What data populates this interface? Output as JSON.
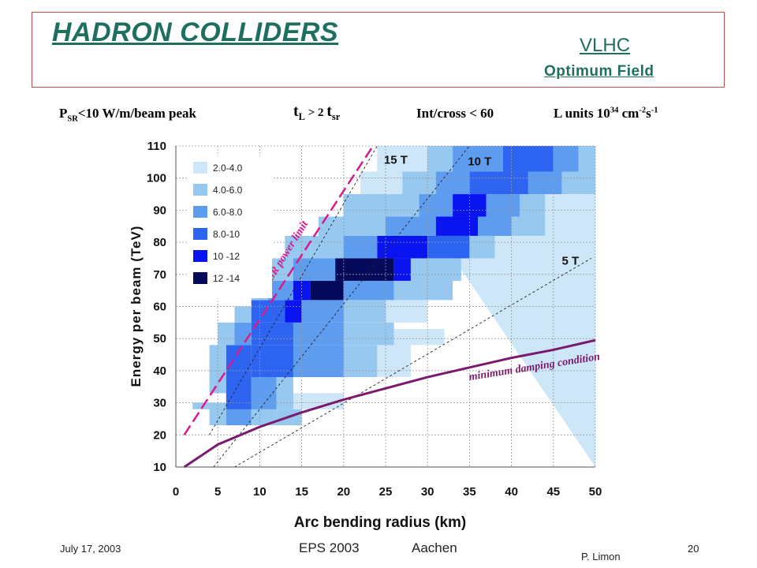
{
  "header": {
    "title": "HADRON COLLIDERS",
    "subtitle_1": "VLHC",
    "subtitle_2": "Optimum Field"
  },
  "conditions": {
    "psr_p": "P",
    "psr_sub": "SR",
    "psr_rest": "<10 W/m/beam peak",
    "tl_t": "t",
    "tl_sub": "L",
    "tl_mid": " > 2 ",
    "tl_t2": "t",
    "tl_sub2": "sr",
    "int": "Int/cross < 60",
    "lum_text": "L units 10",
    "lum_exp": "34",
    "lum_unit": " cm",
    "lum_exp2": "-2",
    "lum_s": "s",
    "lum_exp3": "-1"
  },
  "footer": {
    "date": "July 17, 2003",
    "conference": "EPS 2003",
    "city": "Aachen",
    "page": "20",
    "author": "P. Limon"
  },
  "colors": {
    "title": "#1f6f60",
    "border": "#c0504d",
    "limit_line": "#d81b8c",
    "damping_line": "#7b1a6c",
    "band": [
      "#cde6f8",
      "#96c8f0",
      "#5e9cf0",
      "#2d64f0",
      "#0a14f0",
      "#050a5a"
    ]
  },
  "chart_data": {
    "type": "heatmap",
    "xlabel": "Arc bending radius (km)",
    "ylabel": "Energy per beam (TeV)",
    "xlim": [
      0,
      50
    ],
    "ylim": [
      10,
      110
    ],
    "xticks": [
      0,
      5,
      10,
      15,
      20,
      25,
      30,
      35,
      40,
      45,
      50
    ],
    "yticks": [
      10,
      20,
      30,
      40,
      50,
      60,
      70,
      80,
      90,
      100,
      110
    ],
    "grid": true,
    "legend": {
      "placement": "top-left",
      "entries": [
        "2.0-4.0",
        "4.0-6.0",
        "6.0-8.0",
        "8.0-10",
        "10 -12",
        "12 -14"
      ]
    },
    "field_lines": [
      {
        "label": "15 T",
        "x": [
          4,
          24
        ],
        "y": [
          20,
          110
        ]
      },
      {
        "label": "10 T",
        "x": [
          4.5,
          35
        ],
        "y": [
          10,
          110
        ]
      },
      {
        "label": "5 T",
        "x": [
          7,
          49.5
        ],
        "y": [
          10,
          75
        ]
      }
    ],
    "sr_power_limit": {
      "label": "SR power limit",
      "x": [
        1,
        23.5
      ],
      "y": [
        20,
        110
      ]
    },
    "minimum_damping_condition": {
      "label": "minimum damping condition",
      "x": [
        1,
        5,
        10,
        15,
        20,
        25,
        30,
        35,
        40,
        45,
        50
      ],
      "y": [
        10,
        17,
        22.5,
        27,
        31,
        34.5,
        38,
        41,
        44,
        46.5,
        49.5
      ]
    },
    "cells": [
      [
        2,
        28,
        4,
        30,
        1
      ],
      [
        4,
        23,
        6,
        30,
        1
      ],
      [
        6,
        23,
        9,
        30,
        2
      ],
      [
        9,
        23,
        12,
        30,
        1
      ],
      [
        12,
        23,
        15,
        28,
        1
      ],
      [
        4,
        33,
        6,
        38,
        1
      ],
      [
        6,
        28,
        9,
        38,
        3
      ],
      [
        9,
        28,
        12,
        38,
        2
      ],
      [
        12,
        28,
        14,
        38,
        1
      ],
      [
        14,
        28,
        20,
        33,
        0
      ],
      [
        4,
        38,
        6,
        48,
        1
      ],
      [
        6,
        38,
        9,
        48,
        3
      ],
      [
        9,
        38,
        14,
        48,
        3
      ],
      [
        14,
        38,
        20,
        48,
        2
      ],
      [
        20,
        38,
        24,
        48,
        1
      ],
      [
        24,
        38,
        28,
        48,
        0
      ],
      [
        5,
        48,
        7,
        55,
        1
      ],
      [
        7,
        48,
        9,
        55,
        2
      ],
      [
        9,
        48,
        14,
        55,
        3
      ],
      [
        14,
        48,
        20,
        55,
        2
      ],
      [
        20,
        48,
        26,
        55,
        1
      ],
      [
        26,
        48,
        32,
        53,
        0
      ],
      [
        7,
        55,
        9,
        60,
        1
      ],
      [
        9,
        55,
        13,
        62,
        3
      ],
      [
        13,
        55,
        15,
        62,
        4
      ],
      [
        15,
        55,
        20,
        62,
        2
      ],
      [
        20,
        55,
        25,
        62,
        1
      ],
      [
        25,
        55,
        30,
        62,
        0
      ],
      [
        9,
        62,
        11,
        68,
        1
      ],
      [
        11,
        62,
        14,
        68,
        2
      ],
      [
        14,
        62,
        16,
        68,
        4
      ],
      [
        16,
        62,
        20,
        68,
        5
      ],
      [
        20,
        62,
        26,
        68,
        2
      ],
      [
        26,
        62,
        33,
        68,
        1
      ],
      [
        11,
        68,
        14,
        75,
        1
      ],
      [
        14,
        68,
        19,
        75,
        2
      ],
      [
        19,
        68,
        26,
        75,
        5
      ],
      [
        26,
        68,
        28,
        75,
        4
      ],
      [
        28,
        68,
        34,
        75,
        1
      ],
      [
        13,
        75,
        16,
        82,
        1
      ],
      [
        16,
        75,
        20,
        82,
        1
      ],
      [
        20,
        75,
        24,
        82,
        2
      ],
      [
        24,
        75,
        30,
        82,
        4
      ],
      [
        30,
        75,
        35,
        82,
        3
      ],
      [
        35,
        75,
        38,
        82,
        1
      ],
      [
        17,
        82,
        20,
        88,
        1
      ],
      [
        20,
        82,
        25,
        88,
        1
      ],
      [
        25,
        82,
        31,
        88,
        2
      ],
      [
        31,
        82,
        36,
        88,
        4
      ],
      [
        36,
        82,
        40,
        88,
        2
      ],
      [
        40,
        82,
        44,
        88,
        1
      ],
      [
        20,
        88,
        25,
        95,
        1
      ],
      [
        25,
        88,
        29,
        95,
        1
      ],
      [
        29,
        88,
        33,
        95,
        2
      ],
      [
        33,
        88,
        37,
        95,
        4
      ],
      [
        37,
        88,
        41,
        95,
        2
      ],
      [
        41,
        88,
        44,
        95,
        1
      ],
      [
        22,
        95,
        27,
        102,
        0
      ],
      [
        27,
        95,
        31,
        102,
        1
      ],
      [
        31,
        95,
        35,
        102,
        2
      ],
      [
        35,
        95,
        42,
        102,
        3
      ],
      [
        42,
        95,
        46,
        102,
        2
      ],
      [
        46,
        95,
        50,
        102,
        1
      ],
      [
        24,
        102,
        30,
        110,
        0
      ],
      [
        30,
        102,
        33,
        110,
        1
      ],
      [
        33,
        102,
        39,
        110,
        2
      ],
      [
        39,
        102,
        45,
        110,
        3
      ],
      [
        45,
        102,
        48,
        110,
        2
      ],
      [
        48,
        102,
        50,
        110,
        1
      ]
    ],
    "background_region": {
      "x": [
        50,
        50,
        24
      ],
      "y": [
        10,
        110,
        110
      ],
      "shade": 0
    }
  }
}
